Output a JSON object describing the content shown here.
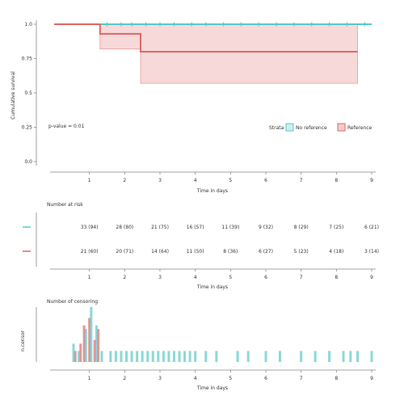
{
  "chart_data": [
    {
      "type": "line",
      "subtype": "kaplan-meier",
      "title": "",
      "xlabel": "Time in days",
      "ylabel": "Cumulative survival",
      "xlim": [
        0,
        9
      ],
      "ylim": [
        0,
        1
      ],
      "x_ticks": [
        1,
        2,
        3,
        4,
        5,
        6,
        7,
        8,
        9
      ],
      "x_tick_labels": [
        "1",
        "2",
        "3",
        "4",
        "5",
        "6",
        "7",
        "8",
        "9"
      ],
      "y_ticks": [
        0,
        0.25,
        0.5,
        0.75,
        1.0
      ],
      "y_tick_labels": [
        "0.0",
        "0.25",
        "0.5",
        "0.75",
        "1.0"
      ],
      "annotation": "p-value = 0.01",
      "legend": {
        "title": "Strata",
        "position": "right",
        "entries": [
          "No reference",
          "Reference"
        ]
      },
      "series": [
        {
          "name": "No reference",
          "color": "#5bc8c8",
          "steps": [
            [
              0,
              1.0
            ],
            [
              9,
              1.0
            ]
          ],
          "ci_lower": [
            [
              0,
              1.0
            ],
            [
              9,
              1.0
            ]
          ],
          "ci_upper": [
            [
              0,
              1.0
            ],
            [
              9,
              1.0
            ]
          ],
          "censor_times": [
            1.5,
            1.9,
            2.2,
            2.6,
            3.0,
            3.4,
            3.9,
            4.3,
            4.8,
            5.3,
            5.8,
            6.3,
            6.8,
            7.3,
            7.8,
            8.3,
            8.8
          ]
        },
        {
          "name": "Reference",
          "color": "#e06666",
          "steps": [
            [
              0,
              1.0
            ],
            [
              1.3,
              1.0
            ],
            [
              1.3,
              0.93
            ],
            [
              2.45,
              0.93
            ],
            [
              2.45,
              0.8
            ],
            [
              8.6,
              0.8
            ]
          ],
          "ci_lower": [
            [
              1.3,
              0.82
            ],
            [
              2.45,
              0.82
            ],
            [
              2.45,
              0.57
            ],
            [
              8.6,
              0.57
            ]
          ],
          "ci_upper": [
            [
              1.3,
              1.0
            ],
            [
              8.6,
              1.0
            ]
          ],
          "censor_times": []
        }
      ],
      "grid": false
    },
    {
      "type": "table",
      "title": "Number at risk",
      "xlabel": "Time in days",
      "columns": [
        1,
        2,
        3,
        4,
        5,
        6,
        7,
        8,
        9
      ],
      "rows": [
        {
          "name": "No reference",
          "color": "#5bc8c8",
          "values": [
            "33 (94)",
            "28 (80)",
            "21 (75)",
            "16 (57)",
            "11 (39)",
            "9 (32)",
            "8 (29)",
            "7 (25)",
            "6 (21)"
          ]
        },
        {
          "name": "Reference",
          "color": "#e06666",
          "values": [
            "21 (60)",
            "20 (71)",
            "14 (64)",
            "11 (50)",
            "8 (36)",
            "6 (27)",
            "5 (23)",
            "4 (18)",
            "3 (14)"
          ]
        }
      ]
    },
    {
      "type": "bar",
      "subtype": "censoring-histogram",
      "title": "Number of censoring",
      "xlabel": "Time in days",
      "ylabel": "n.censor",
      "xlim": [
        0,
        9
      ],
      "ylim": [
        0,
        3
      ],
      "x_ticks": [
        1,
        2,
        3,
        4,
        5,
        6,
        7,
        8,
        9
      ],
      "x_tick_labels": [
        "1",
        "2",
        "3",
        "4",
        "5",
        "6",
        "7",
        "8",
        "9"
      ],
      "series": [
        {
          "name": "Reference",
          "color": "#e06666",
          "x": [
            0.6,
            0.75,
            0.85,
            1.0,
            1.15,
            1.25
          ],
          "values": [
            0.6,
            1.0,
            2.0,
            2.4,
            1.2,
            1.8
          ]
        },
        {
          "name": "No reference",
          "color": "#5bc8c8",
          "x": [
            0.55,
            0.7,
            0.9,
            1.05,
            1.2,
            1.35,
            1.6,
            1.75,
            1.9,
            2.05,
            2.2,
            2.35,
            2.5,
            2.65,
            2.8,
            2.95,
            3.1,
            3.25,
            3.4,
            3.55,
            3.7,
            3.85,
            4.0,
            4.3,
            4.6,
            5.2,
            5.5,
            6.0,
            6.4,
            7.0,
            7.4,
            7.8,
            8.2,
            8.4,
            8.6,
            9.0
          ],
          "values": [
            1.0,
            0.6,
            1.8,
            3.0,
            2.0,
            0.6,
            0.6,
            0.6,
            0.6,
            0.6,
            0.6,
            0.6,
            0.6,
            0.6,
            0.6,
            0.6,
            0.6,
            0.6,
            0.6,
            0.6,
            0.6,
            0.6,
            0.6,
            0.6,
            0.6,
            0.6,
            0.6,
            0.6,
            0.6,
            0.6,
            0.6,
            0.6,
            0.6,
            0.6,
            0.6,
            0.6
          ]
        }
      ],
      "grid": false
    }
  ]
}
